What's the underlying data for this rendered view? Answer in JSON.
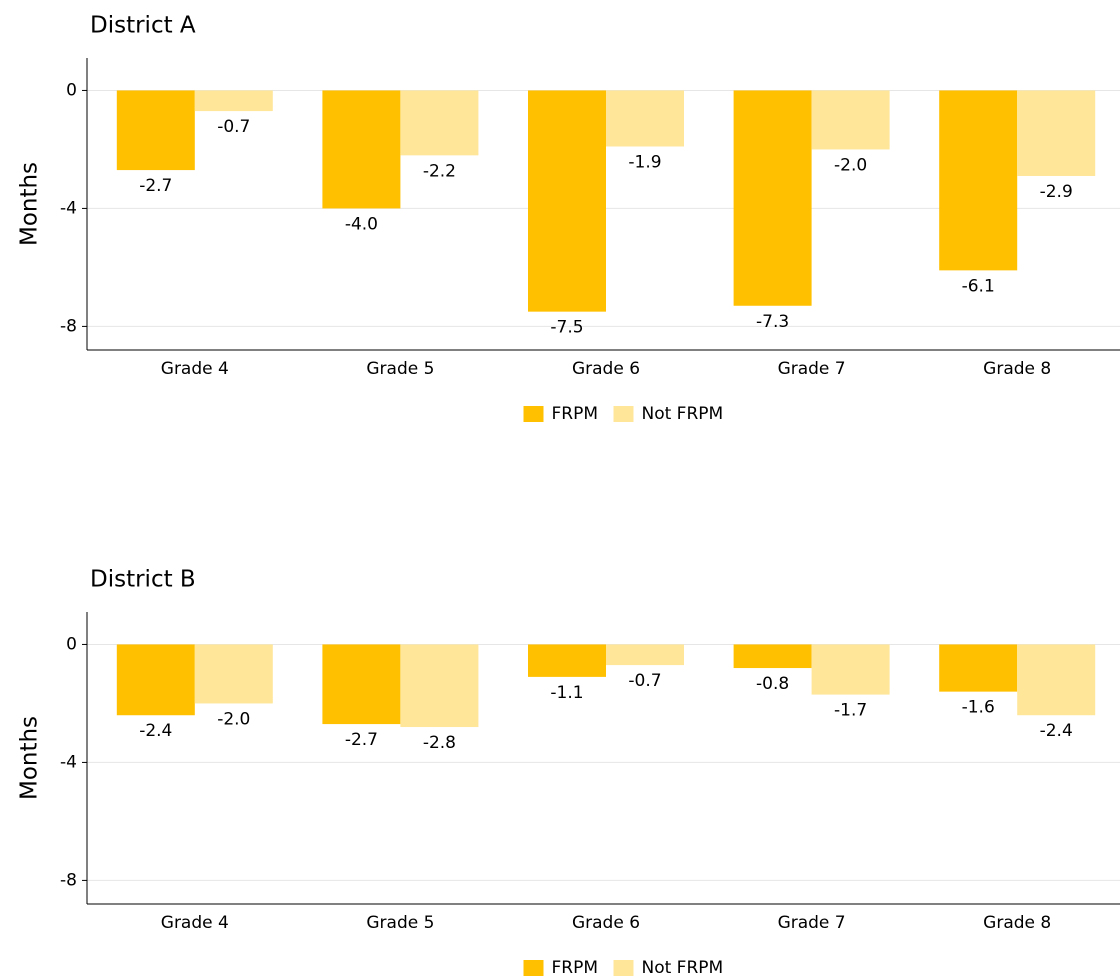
{
  "chart_data": [
    {
      "type": "bar",
      "title": "District A",
      "ylabel": "Months",
      "categories": [
        "Grade 4",
        "Grade 5",
        "Grade 6",
        "Grade 7",
        "Grade 8"
      ],
      "series": [
        {
          "name": "FRPM",
          "color": "#FFC000",
          "values": [
            -2.7,
            -4.0,
            -7.5,
            -7.3,
            -6.1
          ],
          "value_labels": [
            "-2.7",
            "-4.0",
            "-7.5",
            "-7.3",
            "-6.1"
          ]
        },
        {
          "name": "Not FRPM",
          "color": "#FFE699",
          "values": [
            -0.7,
            -2.2,
            -1.9,
            -2.0,
            -2.9
          ],
          "value_labels": [
            "-0.7",
            "-2.2",
            "-1.9",
            "-2.0",
            "-2.9"
          ]
        }
      ],
      "ylim": [
        -8.8,
        1.1
      ],
      "yticks": [
        -8,
        -4,
        0
      ],
      "grid": true,
      "legend": "bottom"
    },
    {
      "type": "bar",
      "title": "District B",
      "ylabel": "Months",
      "categories": [
        "Grade 4",
        "Grade 5",
        "Grade 6",
        "Grade 7",
        "Grade 8"
      ],
      "series": [
        {
          "name": "FRPM",
          "color": "#FFC000",
          "values": [
            -2.4,
            -2.7,
            -1.1,
            -0.8,
            -1.6
          ],
          "value_labels": [
            "-2.4",
            "-2.7",
            "-1.1",
            "-0.8",
            "-1.6"
          ]
        },
        {
          "name": "Not FRPM",
          "color": "#FFE699",
          "values": [
            -2.0,
            -2.8,
            -0.7,
            -1.7,
            -2.4
          ],
          "value_labels": [
            "-2.0",
            "-2.8",
            "-0.7",
            "-1.7",
            "-2.4"
          ]
        }
      ],
      "ylim": [
        -8.8,
        1.1
      ],
      "yticks": [
        -8,
        -4,
        0
      ],
      "grid": true,
      "legend": "bottom"
    }
  ]
}
